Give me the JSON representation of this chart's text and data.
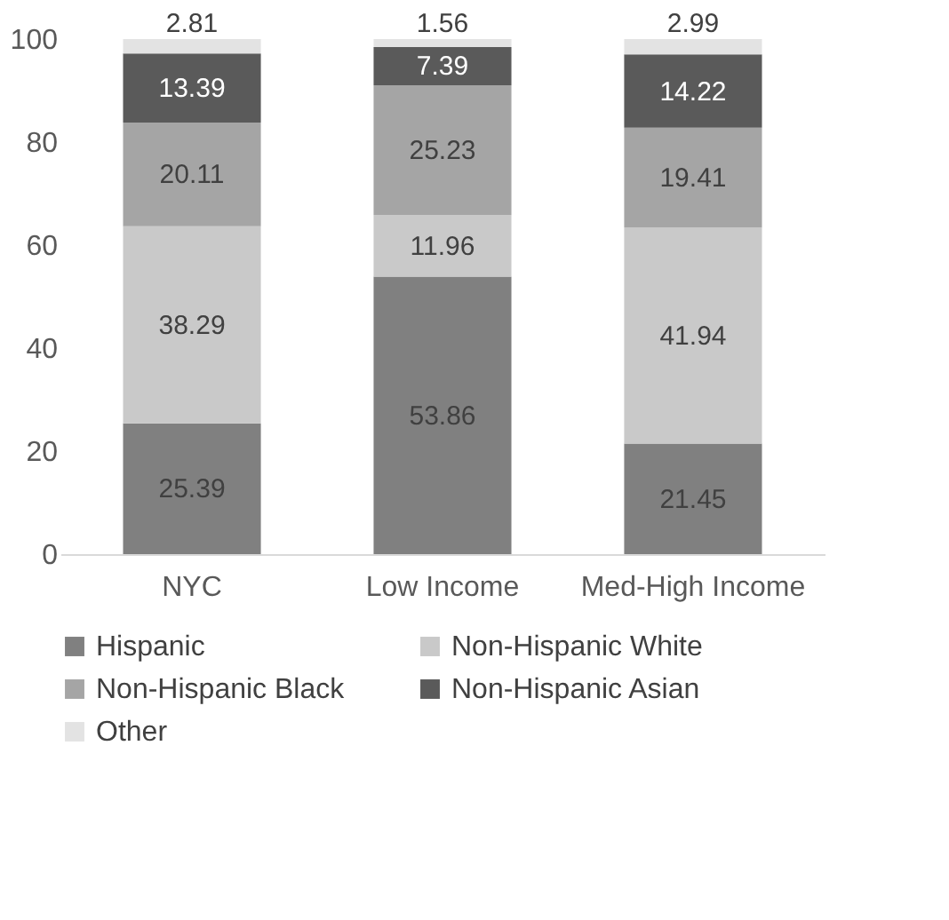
{
  "chart_data": {
    "type": "bar",
    "stacked": true,
    "categories": [
      "NYC",
      "Low Income",
      "Med-High Income"
    ],
    "series": [
      {
        "name": "Hispanic",
        "color": "#808080",
        "values": [
          25.39,
          53.86,
          21.45
        ]
      },
      {
        "name": "Non-Hispanic White",
        "color": "#c9c9c9",
        "values": [
          38.29,
          11.96,
          41.94
        ]
      },
      {
        "name": "Non-Hispanic Black",
        "color": "#a5a5a5",
        "values": [
          20.11,
          25.23,
          19.41
        ]
      },
      {
        "name": "Non-Hispanic Asian",
        "color": "#5a5a5a",
        "values": [
          13.39,
          7.39,
          14.22
        ]
      },
      {
        "name": "Other",
        "color": "#e3e3e3",
        "values": [
          2.81,
          1.56,
          2.99
        ]
      }
    ],
    "ylim": [
      0,
      100
    ],
    "yticks": [
      0,
      20,
      40,
      60,
      80,
      100
    ],
    "grid": false,
    "legend": "bottom",
    "data_labels": true
  }
}
